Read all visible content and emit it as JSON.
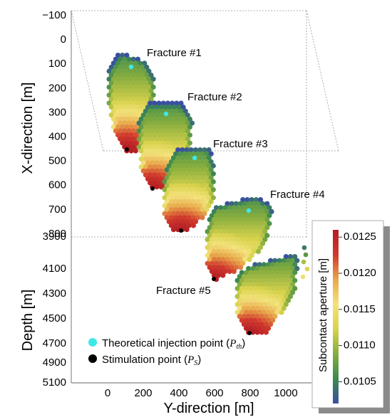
{
  "chart_data": {
    "type": "scatter",
    "x_axis": {
      "label": "Y-direction [m]",
      "ticks": [
        "0",
        "200",
        "400",
        "600",
        "800",
        "1000"
      ],
      "range": [
        -120,
        1150
      ]
    },
    "y_axis_top": {
      "label": "X-direction [m]",
      "ticks": [
        "−100",
        "0",
        "100",
        "200",
        "300",
        "400",
        "500",
        "600",
        "700",
        "800"
      ],
      "range": [
        -100,
        900
      ]
    },
    "y_axis_bottom": {
      "label": "Depth [m]",
      "ticks": [
        "3900",
        "4100",
        "4300",
        "4500",
        "4700",
        "4900",
        "5100"
      ],
      "range": [
        3900,
        5100
      ]
    },
    "fractures": [
      {
        "label": "Fracture #1",
        "y_center": 130,
        "x_center": 380,
        "depth_center": 3980
      },
      {
        "label": "Fracture #2",
        "y_center": 310,
        "x_center": 500,
        "depth_center": 4110
      },
      {
        "label": "Fracture #3",
        "y_center": 480,
        "x_center": 620,
        "depth_center": 4230
      },
      {
        "label": "Fracture #4",
        "y_center": 700,
        "x_center": 790,
        "depth_center": 4390
      },
      {
        "label": "Fracture #5",
        "y_center": 880,
        "x_center": 880,
        "depth_center": 4520
      }
    ],
    "legend": {
      "items": [
        {
          "label": "Theoretical injection point (",
          "math": "P",
          "sub": "th",
          "color": "#40e8e8"
        },
        {
          "label": "Stimulation point (",
          "math": "P",
          "sub": "S",
          "color": "#000000"
        }
      ],
      "placement": "bottom-left"
    },
    "colorbar": {
      "title": "Subcontact aperture [m]",
      "ticks": [
        "0.0125",
        "0.0120",
        "0.0115",
        "0.0110",
        "0.0105"
      ],
      "range": [
        0.0102,
        0.0126
      ],
      "colors": [
        "#3a4fa0",
        "#3b8a4e",
        "#86ad3e",
        "#d8d24c",
        "#f3e37c",
        "#e8a84a",
        "#d0382c",
        "#b41e24"
      ]
    }
  }
}
